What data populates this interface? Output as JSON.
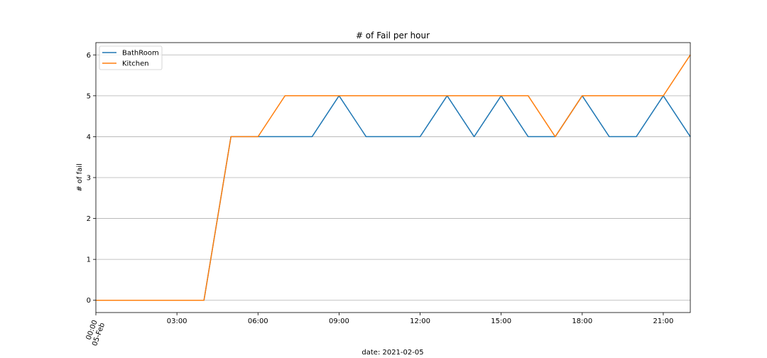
{
  "chart_data": {
    "type": "line",
    "title": "# of Fail per hour",
    "xlabel": "date: 2021-02-05",
    "ylabel": "# of fail",
    "x": [
      "00:00",
      "01:00",
      "02:00",
      "03:00",
      "04:00",
      "05:00",
      "06:00",
      "07:00",
      "08:00",
      "09:00",
      "10:00",
      "11:00",
      "12:00",
      "13:00",
      "14:00",
      "15:00",
      "16:00",
      "17:00",
      "18:00",
      "19:00",
      "20:00",
      "21:00",
      "22:00"
    ],
    "x_range": [
      "2021-02-05 00:00",
      "2021-02-05 22:00"
    ],
    "x_ticks": [
      "00:00\n05-Feb",
      "03:00",
      "06:00",
      "09:00",
      "12:00",
      "15:00",
      "18:00",
      "21:00"
    ],
    "y_ticks": [
      0,
      1,
      2,
      3,
      4,
      5,
      6
    ],
    "ylim": [
      -0.3,
      6.3
    ],
    "grid": "horizontal",
    "legend_position": "top-left",
    "series": [
      {
        "name": "BathRoom",
        "color": "#1f77b4",
        "values": [
          0,
          0,
          0,
          0,
          0,
          4,
          4,
          4,
          4,
          5,
          4,
          4,
          4,
          5,
          4,
          5,
          4,
          4,
          5,
          4,
          4,
          5,
          4
        ]
      },
      {
        "name": "Kitchen",
        "color": "#ff7f0e",
        "values": [
          0,
          0,
          0,
          0,
          0,
          4,
          4,
          5,
          5,
          5,
          5,
          5,
          5,
          5,
          5,
          5,
          5,
          4,
          5,
          5,
          5,
          5,
          6
        ]
      }
    ]
  }
}
